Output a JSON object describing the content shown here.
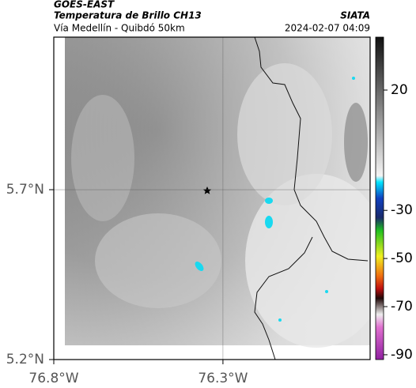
{
  "header": {
    "title": "GOES-EAST",
    "subtitle": "Temperatura de Brillo CH13",
    "route": "Vía Medellín - Quibdó 50km",
    "source": "SIATA",
    "datetime": "2024-02-07 04:09"
  },
  "map": {
    "xlim": [
      -76.8,
      -75.865
    ],
    "ylim": [
      5.2,
      6.149
    ],
    "xticks": [
      {
        "value": -76.8,
        "label": "76.8°W"
      },
      {
        "value": -76.3,
        "label": "76.3°W"
      }
    ],
    "yticks": [
      {
        "value": 5.2,
        "label": "5.2°N"
      },
      {
        "value": 5.7,
        "label": "5.7°N"
      }
    ],
    "grid": true
  },
  "colorbar": {
    "ylim": [
      -92,
      42
    ],
    "ticks": [
      20,
      -30,
      -50,
      -70,
      -90
    ]
  }
}
